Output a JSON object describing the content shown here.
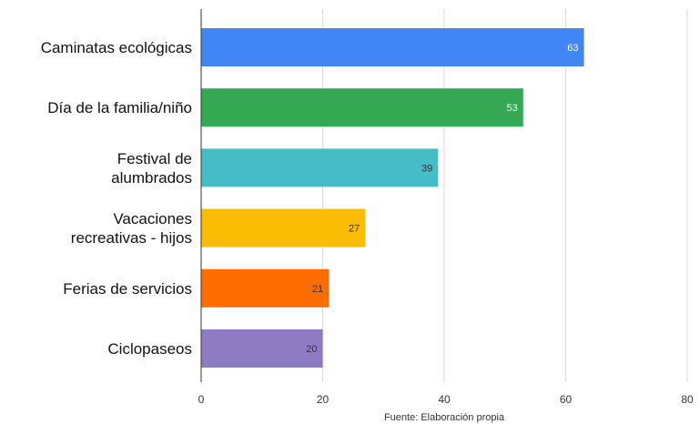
{
  "chart_data": {
    "type": "bar",
    "orientation": "horizontal",
    "categories": [
      [
        "Caminatas ecológicas"
      ],
      [
        "Día de la familia/niño"
      ],
      [
        "Festival de",
        "alumbrados"
      ],
      [
        "Vacaciones",
        "recreativas - hijos"
      ],
      [
        "Ferias de servicios"
      ],
      [
        "Ciclopaseos"
      ]
    ],
    "values": [
      63,
      53,
      39,
      27,
      21,
      20
    ],
    "bar_colors": [
      "#4285f4",
      "#34a853",
      "#46bdc6",
      "#fbbc04",
      "#ff6d01",
      "#8e7cc3"
    ],
    "value_label_colors": [
      "#ffffff",
      "#ffffff",
      "#333333",
      "#333333",
      "#333333",
      "#333333"
    ],
    "xlim": [
      0,
      80
    ],
    "xticks": [
      0,
      20,
      40,
      60,
      80
    ],
    "grid": true,
    "source": "Fuente: Elaboración propia"
  }
}
